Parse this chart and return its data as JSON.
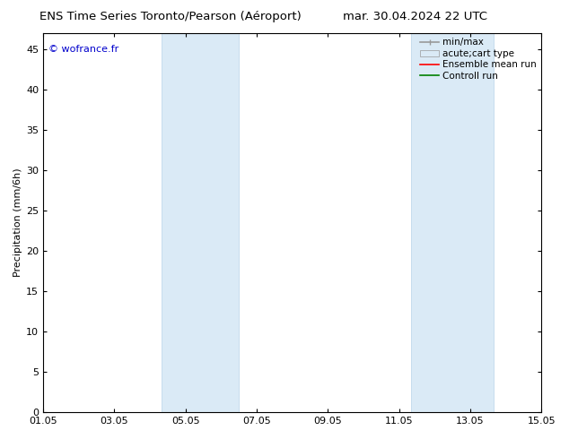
{
  "title_left": "ENS Time Series Toronto/Pearson (Aéroport)",
  "title_right": "mar. 30.04.2024 22 UTC",
  "ylabel": "Precipitation (mm/6h)",
  "ylim": [
    0,
    47
  ],
  "yticks": [
    0,
    5,
    10,
    15,
    20,
    25,
    30,
    35,
    40,
    45
  ],
  "xtick_labels": [
    "01.05",
    "03.05",
    "05.05",
    "07.05",
    "09.05",
    "11.05",
    "13.05",
    "15.05"
  ],
  "xtick_positions": [
    0,
    2,
    4,
    6,
    8,
    10,
    12,
    14
  ],
  "xlim": [
    0,
    14
  ],
  "shaded_regions": [
    {
      "x_start": 3.33,
      "x_end": 5.5
    },
    {
      "x_start": 10.33,
      "x_end": 12.67
    }
  ],
  "shaded_color": "#daeaf6",
  "shaded_edge_color": "#b8d4ea",
  "watermark_text": "© wofrance.fr",
  "watermark_color": "#0000cc",
  "legend_entries": [
    {
      "label": "min/max",
      "color": "#999999",
      "lw": 1.2
    },
    {
      "label": "acute;cart type",
      "color": "#daeaf6",
      "lw": 8
    },
    {
      "label": "Ensemble mean run",
      "color": "#ff0000",
      "lw": 1.2
    },
    {
      "label": "Controll run",
      "color": "#008000",
      "lw": 1.2
    }
  ],
  "bg_color": "#ffffff",
  "tick_color": "#000000",
  "spine_color": "#000000",
  "font_size_title": 9.5,
  "font_size_ticks": 8,
  "font_size_ylabel": 8,
  "font_size_legend": 7.5,
  "font_size_watermark": 8
}
